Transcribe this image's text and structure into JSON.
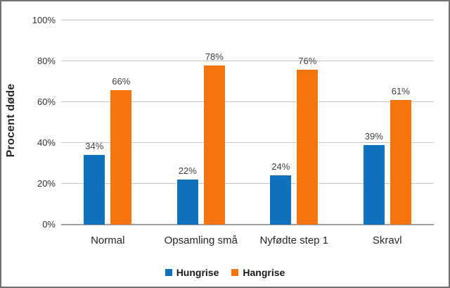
{
  "chart_data": {
    "type": "bar",
    "title": "",
    "ylabel": "Procent døde",
    "xlabel": "",
    "categories": [
      "Normal",
      "Opsamling små",
      "Nyfødte step 1",
      "Skravl"
    ],
    "series": [
      {
        "name": "Hungrise",
        "color": "#1072BC",
        "values": [
          34,
          22,
          24,
          39
        ],
        "data_labels": [
          "34%",
          "22%",
          "24%",
          "39%"
        ]
      },
      {
        "name": "Hangrise",
        "color": "#F5740C",
        "values": [
          66,
          78,
          76,
          61
        ],
        "data_labels": [
          "66%",
          "78%",
          "76%",
          "61%"
        ]
      }
    ],
    "ylim": [
      0,
      100
    ],
    "ytick_step": 20,
    "ytick_labels": [
      "0%",
      "20%",
      "40%",
      "60%",
      "80%",
      "100%"
    ],
    "grid": true,
    "legend_position": "bottom",
    "value_suffix": "%"
  },
  "colors": {
    "series_blue": "#1072BC",
    "series_orange": "#F5740C",
    "gridline": "#C6C6C6",
    "axis_line": "#9E9E9E",
    "tick_text": "#333333",
    "label_text": "#404040",
    "frame_border": "#6E6E74"
  }
}
